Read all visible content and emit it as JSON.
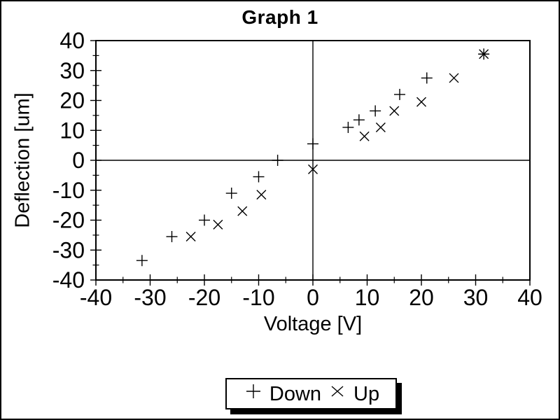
{
  "window": {
    "background": "#ffffff",
    "border_color": "#000000",
    "foreground": "#000000"
  },
  "chart_data": {
    "type": "scatter",
    "title": "Graph 1",
    "xlabel": "Voltage [V]",
    "ylabel": "Deflection [um]",
    "xlim": [
      -40,
      40
    ],
    "ylim": [
      -40,
      40
    ],
    "x_major_ticks": [
      -40,
      -30,
      -20,
      -10,
      0,
      10,
      20,
      30,
      40
    ],
    "y_major_ticks": [
      -40,
      -30,
      -20,
      -10,
      0,
      10,
      20,
      30,
      40
    ],
    "x_minor_ticks": [
      -35,
      -25,
      -15,
      -5,
      5,
      15,
      25,
      35
    ],
    "y_minor_ticks": [
      -35,
      -25,
      -15,
      -5,
      5,
      15,
      25,
      35
    ],
    "grid": false,
    "zero_lines": true,
    "marker_color": "#000000",
    "legend_position": "bottom-center",
    "series": [
      {
        "name": "Down",
        "marker": "plus",
        "marker_glyph": "+",
        "points": [
          [
            -31.5,
            -33.5
          ],
          [
            -26,
            -25.5
          ],
          [
            -20,
            -20
          ],
          [
            -15,
            -11
          ],
          [
            -10,
            -5.5
          ],
          [
            -6.5,
            0
          ],
          [
            0,
            5.5
          ],
          [
            6.5,
            11
          ],
          [
            8.5,
            13.5
          ],
          [
            11.5,
            16.5
          ],
          [
            16,
            22
          ],
          [
            21,
            27.5
          ],
          [
            31.5,
            35.5
          ]
        ]
      },
      {
        "name": "Up",
        "marker": "cross",
        "marker_glyph": "×",
        "points": [
          [
            -22.5,
            -25.5
          ],
          [
            -17.5,
            -21.5
          ],
          [
            -13,
            -17
          ],
          [
            -9.5,
            -11.5
          ],
          [
            0,
            -3
          ],
          [
            9.5,
            8
          ],
          [
            12.5,
            11
          ],
          [
            15,
            16.5
          ],
          [
            20,
            19.5
          ],
          [
            26,
            27.5
          ],
          [
            31.5,
            35.5
          ]
        ]
      }
    ]
  }
}
